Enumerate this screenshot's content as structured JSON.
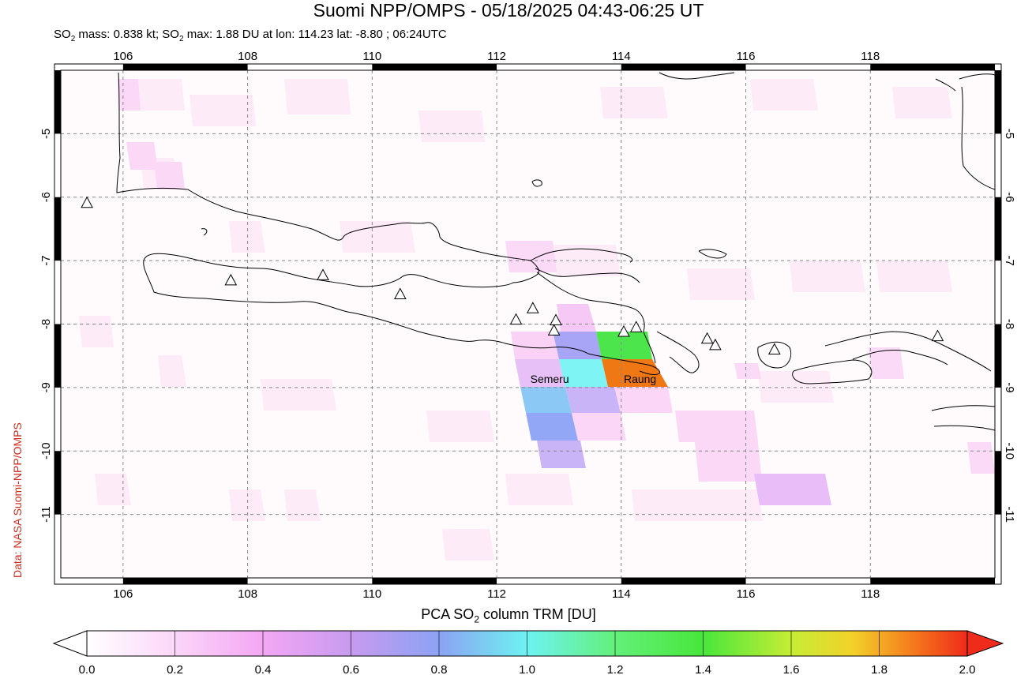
{
  "header": {
    "title": "Suomi NPP/OMPS - 05/18/2025 04:43-06:25 UT",
    "subtitle_pre": "SO",
    "subtitle_sub": "2",
    "subtitle_mid": " mass: 0.838 kt; SO",
    "subtitle_sub2": "2",
    "subtitle_post": " max: 1.88 DU at lon: 114.23 lat: -8.80 ; 06:24UTC"
  },
  "credit": "Data: NASA Suomi-NPP/OMPS",
  "map": {
    "lon_range": [
      105,
      120
    ],
    "lat_range": [
      -12,
      -4
    ],
    "lon_ticks": [
      "106",
      "108",
      "110",
      "112",
      "114",
      "116",
      "118"
    ],
    "lat_ticks": [
      "-5",
      "-6",
      "-7",
      "-8",
      "-9",
      "-10",
      "-11"
    ],
    "volcano_labels": [
      {
        "name": "Semeru",
        "lon": 112.92,
        "lat": -8.11
      },
      {
        "name": "Raung",
        "lon": 114.04,
        "lat": -8.13
      }
    ],
    "volcanoes": [
      {
        "lon": 105.42,
        "lat": -6.1
      },
      {
        "lon": 107.73,
        "lat": -7.32
      },
      {
        "lon": 109.21,
        "lat": -7.24
      },
      {
        "lon": 110.45,
        "lat": -7.54
      },
      {
        "lon": 112.31,
        "lat": -7.94
      },
      {
        "lon": 112.58,
        "lat": -7.76
      },
      {
        "lon": 112.95,
        "lat": -7.95
      },
      {
        "lon": 112.92,
        "lat": -8.11
      },
      {
        "lon": 114.04,
        "lat": -8.13
      },
      {
        "lon": 114.24,
        "lat": -8.06
      },
      {
        "lon": 115.38,
        "lat": -8.24
      },
      {
        "lon": 115.51,
        "lat": -8.34
      },
      {
        "lon": 116.46,
        "lat": -8.41
      },
      {
        "lon": 119.08,
        "lat": -8.2
      }
    ],
    "so2_colors": {
      "green": "#4ce64c",
      "orange": "#f07814",
      "cyan": "#7ef4f4",
      "blue": "#92a8f6",
      "lavender": "#c8b4f6",
      "light_blue": "#8cc8f6",
      "pink": "#f6c8f6"
    }
  },
  "colorbar": {
    "title_pre": "PCA SO",
    "title_sub": "2",
    "title_post": " column TRM [DU]",
    "ticks": [
      "0.0",
      "0.2",
      "0.4",
      "0.6",
      "0.8",
      "1.0",
      "1.2",
      "1.4",
      "1.6",
      "1.8",
      "2.0"
    ],
    "range": [
      0,
      2
    ]
  }
}
